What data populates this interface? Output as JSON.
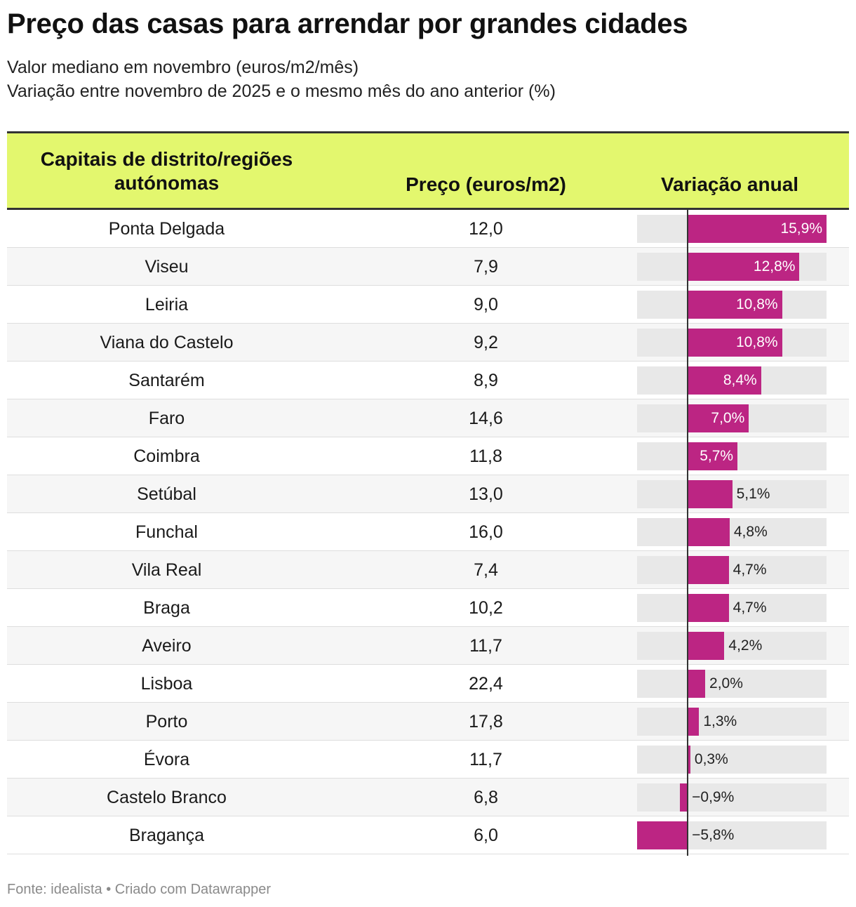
{
  "title": "Preço das casas para arrendar por grandes cidades",
  "subtitle_1": "Valor mediano em novembro (euros/m2/mês)",
  "subtitle_2": "Variação entre novembro de 2025 e o mesmo mês do ano anterior (%)",
  "footer": "Fonte: idealista • Criado com Datawrapper",
  "colors": {
    "header_bg": "#e3f76e",
    "bar": "#bc2583",
    "bar_bg": "#e8e8e8"
  },
  "chart_data": {
    "type": "table",
    "title": "Preço das casas para arrendar por grandes cidades",
    "columns": [
      "Capitais de distrito/regiões autónomas",
      "Preço (euros/m2)",
      "Variação anual"
    ],
    "variation_range": [
      -5.8,
      15.9
    ],
    "rows": [
      {
        "city": "Ponta Delgada",
        "price": "12,0",
        "variation": 15.9,
        "variation_label": "15,9%"
      },
      {
        "city": "Viseu",
        "price": "7,9",
        "variation": 12.8,
        "variation_label": "12,8%"
      },
      {
        "city": "Leiria",
        "price": "9,0",
        "variation": 10.8,
        "variation_label": "10,8%"
      },
      {
        "city": "Viana do Castelo",
        "price": "9,2",
        "variation": 10.8,
        "variation_label": "10,8%"
      },
      {
        "city": "Santarém",
        "price": "8,9",
        "variation": 8.4,
        "variation_label": "8,4%"
      },
      {
        "city": "Faro",
        "price": "14,6",
        "variation": 7.0,
        "variation_label": "7,0%"
      },
      {
        "city": "Coimbra",
        "price": "11,8",
        "variation": 5.7,
        "variation_label": "5,7%"
      },
      {
        "city": "Setúbal",
        "price": "13,0",
        "variation": 5.1,
        "variation_label": "5,1%"
      },
      {
        "city": "Funchal",
        "price": "16,0",
        "variation": 4.8,
        "variation_label": "4,8%"
      },
      {
        "city": "Vila Real",
        "price": "7,4",
        "variation": 4.7,
        "variation_label": "4,7%"
      },
      {
        "city": "Braga",
        "price": "10,2",
        "variation": 4.7,
        "variation_label": "4,7%"
      },
      {
        "city": "Aveiro",
        "price": "11,7",
        "variation": 4.2,
        "variation_label": "4,2%"
      },
      {
        "city": "Lisboa",
        "price": "22,4",
        "variation": 2.0,
        "variation_label": "2,0%"
      },
      {
        "city": "Porto",
        "price": "17,8",
        "variation": 1.3,
        "variation_label": "1,3%"
      },
      {
        "city": "Évora",
        "price": "11,7",
        "variation": 0.3,
        "variation_label": "0,3%"
      },
      {
        "city": "Castelo Branco",
        "price": "6,8",
        "variation": -0.9,
        "variation_label": "−0,9%"
      },
      {
        "city": "Bragança",
        "price": "6,0",
        "variation": -5.8,
        "variation_label": "−5,8%"
      }
    ]
  }
}
